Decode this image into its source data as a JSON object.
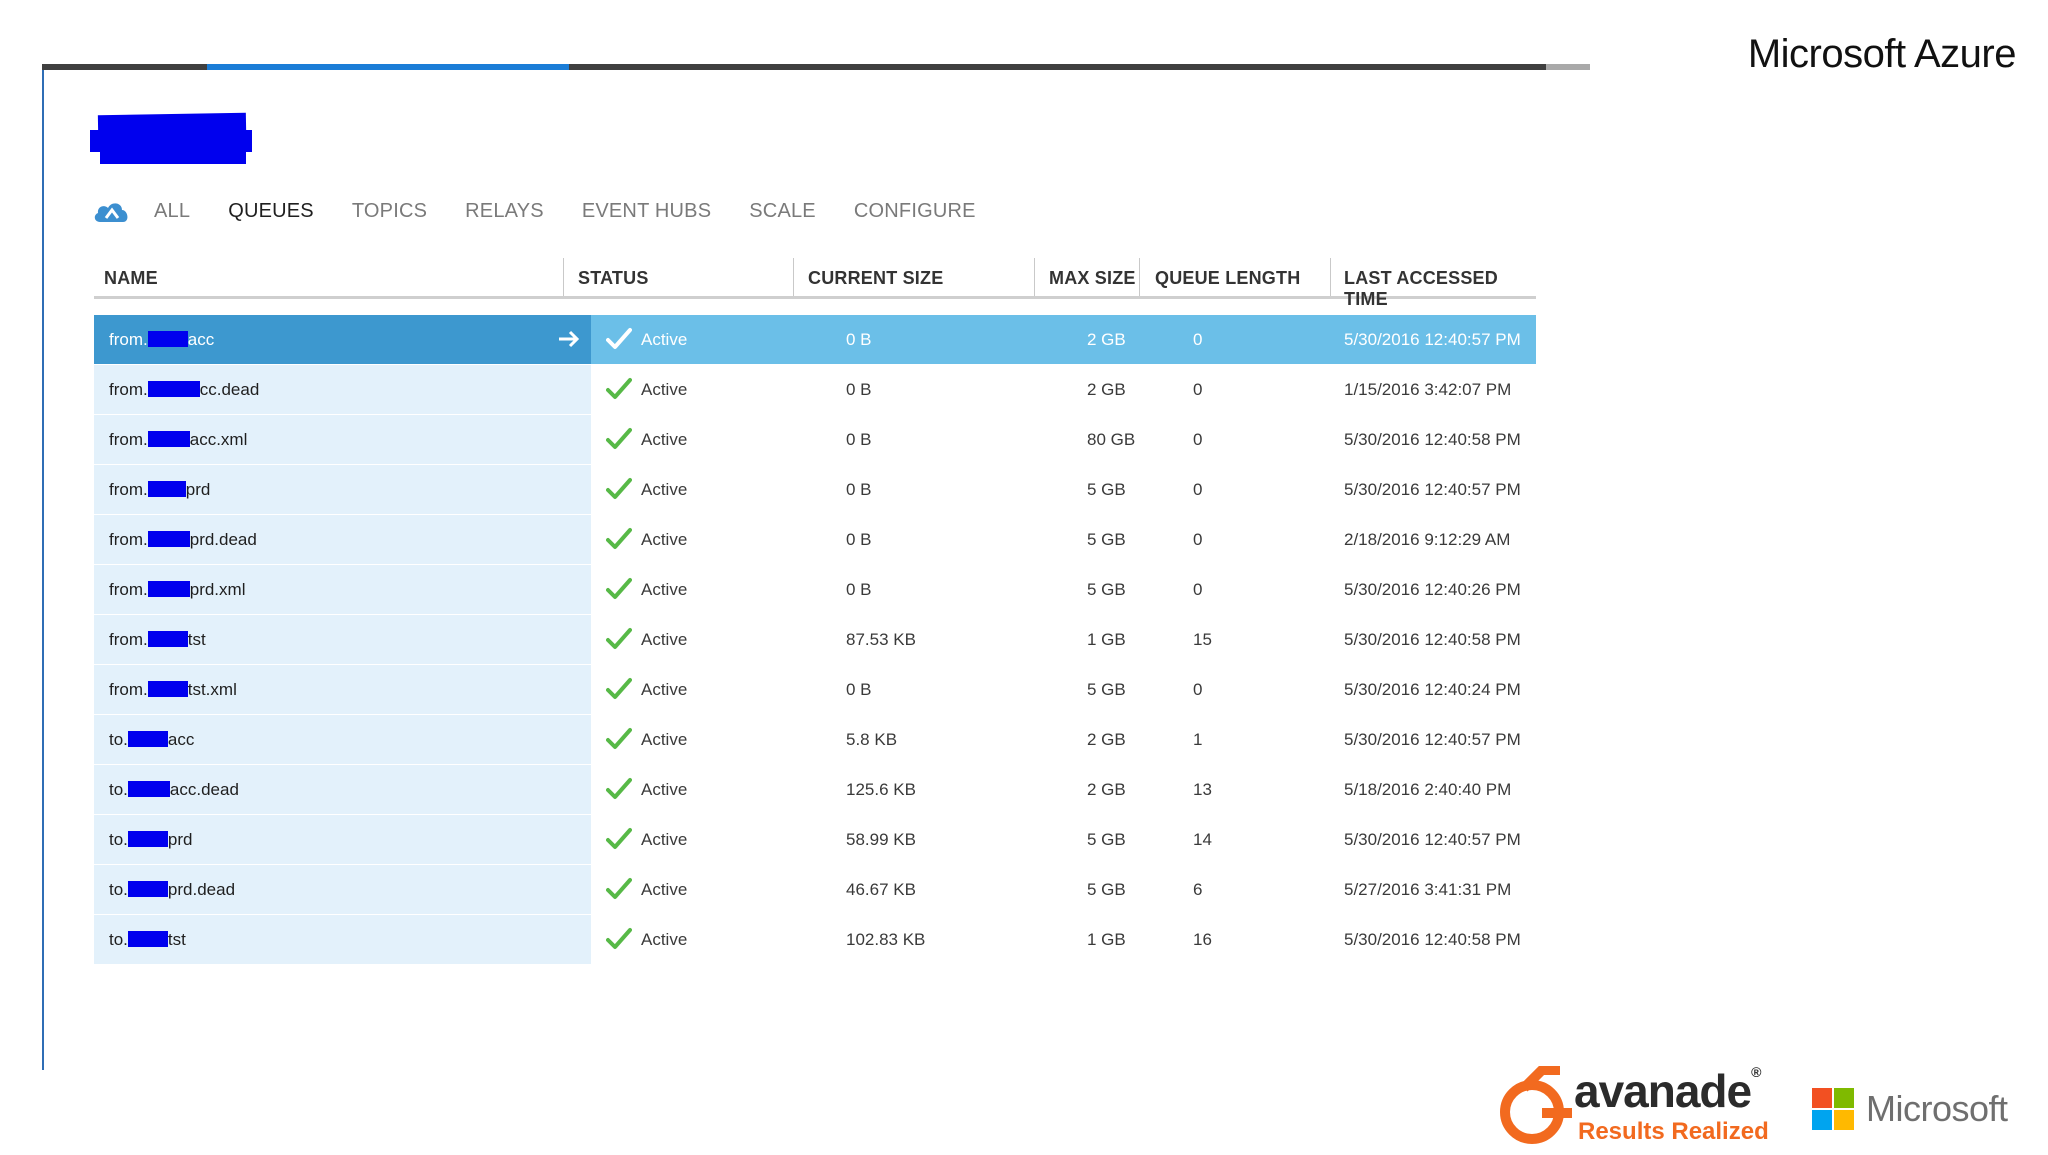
{
  "brand": {
    "top_right": "Microsoft Azure",
    "avanade_word": "avanade",
    "avanade_reg": "®",
    "avanade_tagline": "Results Realized",
    "microsoft_word": "Microsoft"
  },
  "colors": {
    "accent": "#1a7dd7",
    "selected_row": "#3d98cf",
    "selected_row_rest": "#6bbfe8",
    "name_cell": "#e3f1fb",
    "check": "#57b947",
    "redaction": "#0000ee",
    "avanade_orange": "#f26a1f"
  },
  "nav": {
    "icon": "cloud-icon",
    "tabs": [
      {
        "label": "ALL",
        "active": false
      },
      {
        "label": "QUEUES",
        "active": true
      },
      {
        "label": "TOPICS",
        "active": false
      },
      {
        "label": "RELAYS",
        "active": false
      },
      {
        "label": "EVENT HUBS",
        "active": false
      },
      {
        "label": "SCALE",
        "active": false
      },
      {
        "label": "CONFIGURE",
        "active": false
      }
    ]
  },
  "table": {
    "headers": [
      "NAME",
      "STATUS",
      "CURRENT SIZE",
      "MAX SIZE",
      "QUEUE LENGTH",
      "LAST ACCESSED TIME"
    ],
    "rows": [
      {
        "prefix": "from.",
        "suffix": "acc",
        "status": "Active",
        "current_size": "0 B",
        "max_size": "2 GB",
        "queue_length": "0",
        "last_accessed": "5/30/2016 12:40:57 PM",
        "selected": true
      },
      {
        "prefix": "from.",
        "suffix": "cc.dead",
        "status": "Active",
        "current_size": "0 B",
        "max_size": "2 GB",
        "queue_length": "0",
        "last_accessed": "1/15/2016 3:42:07 PM"
      },
      {
        "prefix": "from.",
        "suffix": "acc.xml",
        "status": "Active",
        "current_size": "0 B",
        "max_size": "80 GB",
        "queue_length": "0",
        "last_accessed": "5/30/2016 12:40:58 PM"
      },
      {
        "prefix": "from.",
        "suffix": "prd",
        "status": "Active",
        "current_size": "0 B",
        "max_size": "5 GB",
        "queue_length": "0",
        "last_accessed": "5/30/2016 12:40:57 PM"
      },
      {
        "prefix": "from.",
        "suffix": "prd.dead",
        "status": "Active",
        "current_size": "0 B",
        "max_size": "5 GB",
        "queue_length": "0",
        "last_accessed": "2/18/2016 9:12:29 AM"
      },
      {
        "prefix": "from.",
        "suffix": "prd.xml",
        "status": "Active",
        "current_size": "0 B",
        "max_size": "5 GB",
        "queue_length": "0",
        "last_accessed": "5/30/2016 12:40:26 PM"
      },
      {
        "prefix": "from.",
        "suffix": "tst",
        "status": "Active",
        "current_size": "87.53 KB",
        "max_size": "1 GB",
        "queue_length": "15",
        "last_accessed": "5/30/2016 12:40:58 PM"
      },
      {
        "prefix": "from.",
        "suffix": "tst.xml",
        "status": "Active",
        "current_size": "0 B",
        "max_size": "5 GB",
        "queue_length": "0",
        "last_accessed": "5/30/2016 12:40:24 PM"
      },
      {
        "prefix": "to.",
        "suffix": "acc",
        "status": "Active",
        "current_size": "5.8 KB",
        "max_size": "2 GB",
        "queue_length": "1",
        "last_accessed": "5/30/2016 12:40:57 PM"
      },
      {
        "prefix": "to.",
        "suffix": "acc.dead",
        "status": "Active",
        "current_size": "125.6 KB",
        "max_size": "2 GB",
        "queue_length": "13",
        "last_accessed": "5/18/2016 2:40:40 PM"
      },
      {
        "prefix": "to.",
        "suffix": "prd",
        "status": "Active",
        "current_size": "58.99 KB",
        "max_size": "5 GB",
        "queue_length": "14",
        "last_accessed": "5/30/2016 12:40:57 PM"
      },
      {
        "prefix": "to.",
        "suffix": "prd.dead",
        "status": "Active",
        "current_size": "46.67 KB",
        "max_size": "5 GB",
        "queue_length": "6",
        "last_accessed": "5/27/2016 3:41:31 PM"
      },
      {
        "prefix": "to.",
        "suffix": "tst",
        "status": "Active",
        "current_size": "102.83 KB",
        "max_size": "1 GB",
        "queue_length": "16",
        "last_accessed": "5/30/2016 12:40:58 PM"
      }
    ]
  }
}
